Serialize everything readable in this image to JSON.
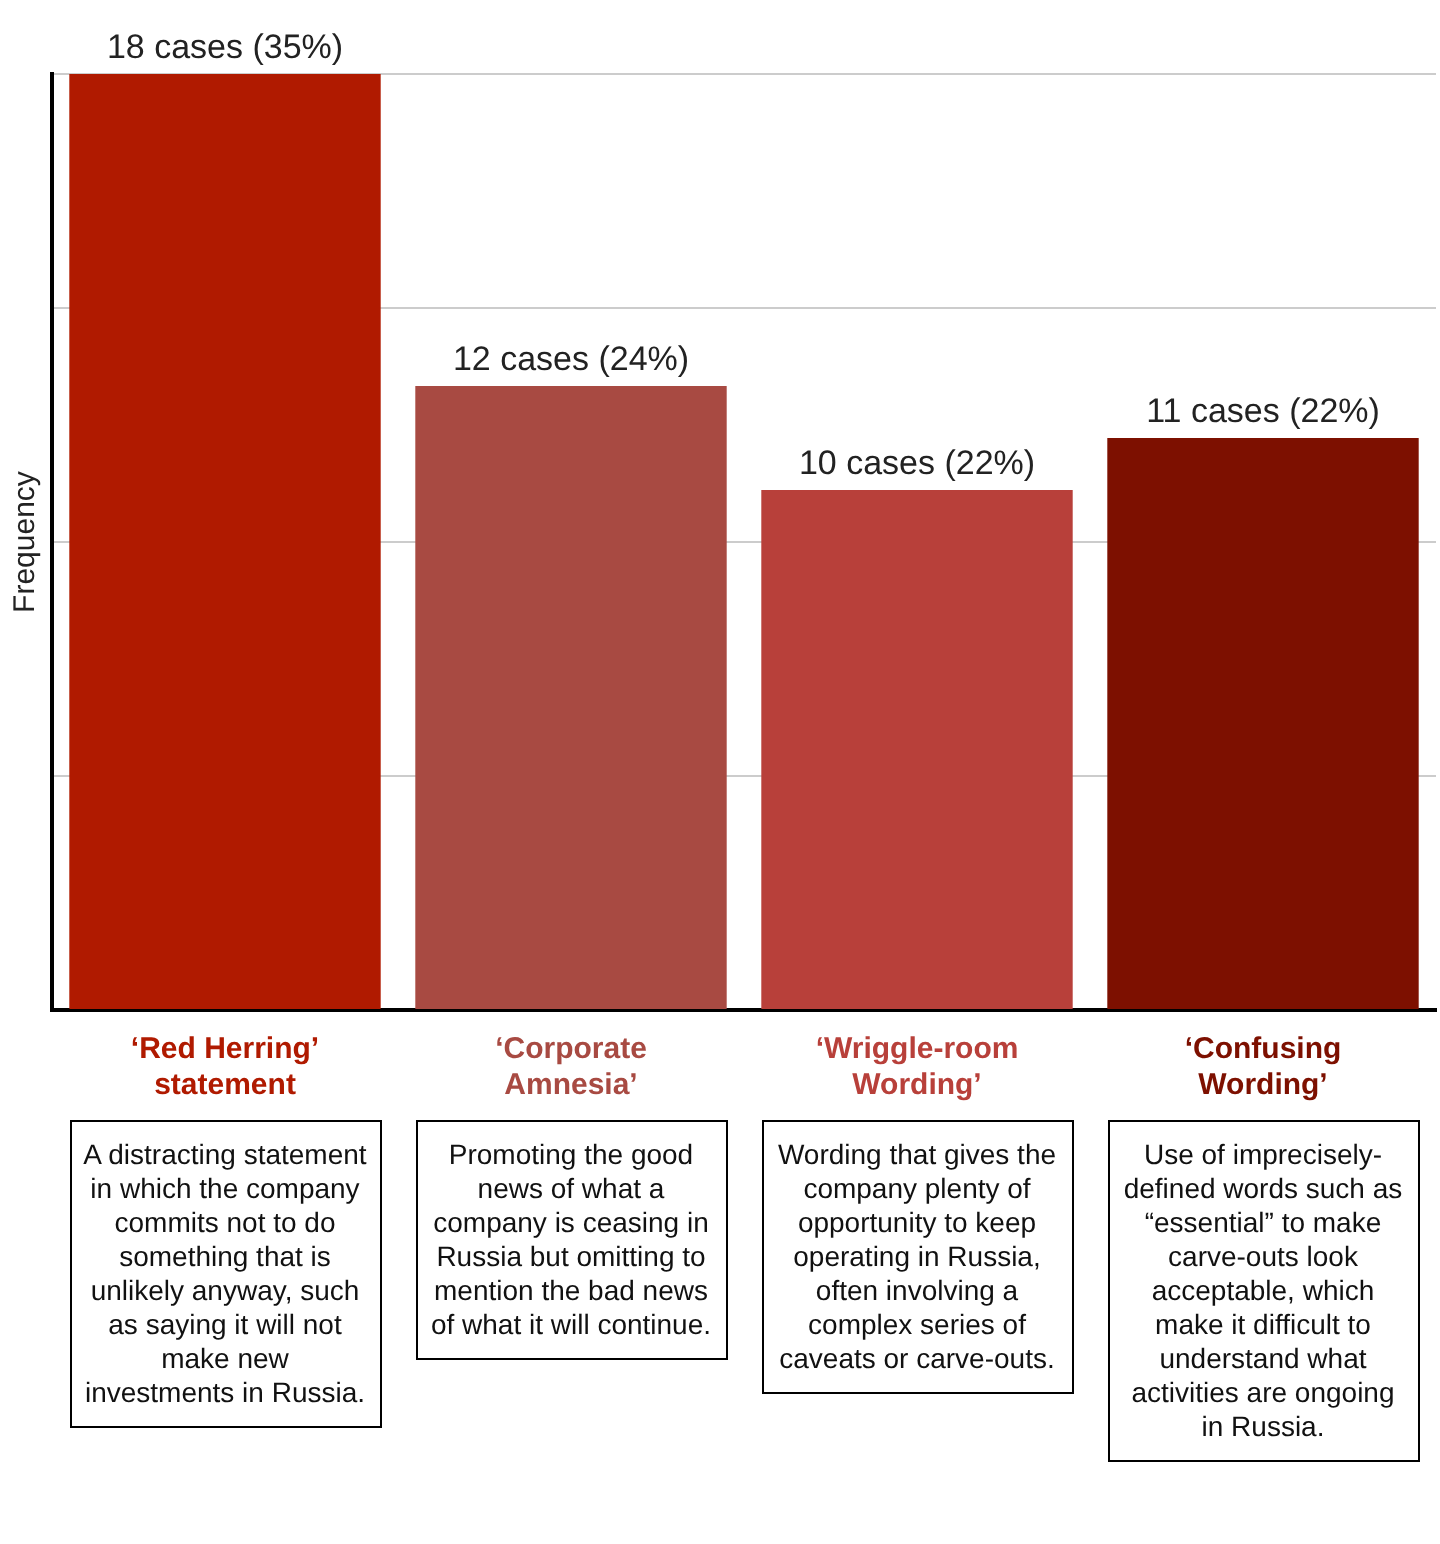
{
  "chart_data": {
    "type": "bar",
    "ylabel": "Frequency",
    "categories": [
      "‘Red Herring’ statement",
      "‘Corporate Amnesia’",
      "‘Wriggle-room Wording’",
      "‘Confusing Wording’"
    ],
    "values": [
      18,
      12,
      10,
      11
    ],
    "colors": [
      "#b01a00",
      "#a84a42",
      "#b8403a",
      "#7d1000"
    ],
    "value_labels": [
      "18 cases (35%)",
      "12 cases (24%)",
      "10 cases (22%)",
      "11 cases (22%)"
    ],
    "ylim": [
      0,
      18
    ],
    "yticks": [
      0,
      4.5,
      9,
      13.5,
      18
    ],
    "grid": "y",
    "tick_labels": "x",
    "annotations": [
      "A distracting statement in which the company commits not to do something that is unlikely anyway, such as saying it will not make new investments in Russia.",
      "Promoting the good news of what a company is ceasing in Russia but omitting to mention the bad news of what it will continue.",
      "Wording that gives the company plenty of opportunity to keep operating in Russia, often involving a complex series of caveats or carve-outs.",
      "Use of imprecisely-defined words such as “essential” to make carve-outs look acceptable, which make it difficult to understand what activities are ongoing in Russia."
    ]
  }
}
